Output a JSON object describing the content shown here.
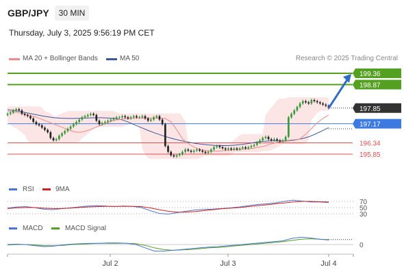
{
  "header": {
    "symbol": "GBP/JPY",
    "timeframe": "30 MIN",
    "datetime": "Thursday, July 3, 2025 9:56:19 PM CET"
  },
  "legend": {
    "ma20": "MA 20 + Bollinger Bands",
    "ma50": "MA 50",
    "credit": "Research © 2025 Trading Central"
  },
  "colors": {
    "ma20": "#f08a8a",
    "ma50": "#3b5998",
    "target": "#54a020",
    "pivot": "#3d7ae0",
    "support": "#e05050",
    "last": "#333333",
    "bands": "#fbdcdc",
    "arrow": "#2f6cc4",
    "rsi": "#4a74d4",
    "rsi_ma": "#d42020",
    "macd": "#4a74d4",
    "macd_signal": "#54a020"
  },
  "chart_data": [
    {
      "type": "candlestick",
      "title": "GBP/JPY 30 MIN",
      "ylim": [
        195.6,
        199.8
      ],
      "x_ticks": [
        "Jul 2",
        "Jul 3",
        "Jul 4"
      ],
      "levels": [
        {
          "label": "199.36",
          "value": 199.36,
          "kind": "target"
        },
        {
          "label": "198.87",
          "value": 198.87,
          "kind": "target"
        },
        {
          "label": "197.85",
          "value": 197.85,
          "kind": "last"
        },
        {
          "label": "197.17",
          "value": 197.17,
          "kind": "pivot"
        },
        {
          "label": "196.34",
          "value": 196.34,
          "kind": "support"
        },
        {
          "label": "195.85",
          "value": 195.85,
          "kind": "support"
        }
      ],
      "closes": [
        197.6,
        197.65,
        197.75,
        197.8,
        197.75,
        197.6,
        197.55,
        197.5,
        197.4,
        197.25,
        197.15,
        197.1,
        197.0,
        196.9,
        196.8,
        196.55,
        196.45,
        196.5,
        196.65,
        196.75,
        196.85,
        196.95,
        197.05,
        197.15,
        197.25,
        197.35,
        197.45,
        197.5,
        197.55,
        197.6,
        197.55,
        197.3,
        197.15,
        197.2,
        197.25,
        197.3,
        197.35,
        197.4,
        197.45,
        197.45,
        197.5,
        197.45,
        197.4,
        197.45,
        197.5,
        197.45,
        197.45,
        197.5,
        197.4,
        197.3,
        197.35,
        197.45,
        197.5,
        197.35,
        197.15,
        196.2,
        195.95,
        195.8,
        195.75,
        195.8,
        195.85,
        195.95,
        196.05,
        196.0,
        195.95,
        196.0,
        196.05,
        196.0,
        195.95,
        195.9,
        195.95,
        196.05,
        196.15,
        196.2,
        196.15,
        196.1,
        196.05,
        196.1,
        196.05,
        196.1,
        196.05,
        196.1,
        196.15,
        196.1,
        196.15,
        196.2,
        196.25,
        196.35,
        196.45,
        196.55,
        196.6,
        196.5,
        196.45,
        196.5,
        196.45,
        196.4,
        196.45,
        196.6,
        197.45,
        197.6,
        197.75,
        197.9,
        198.05,
        198.15,
        198.1,
        198.05,
        198.2,
        198.15,
        198.1,
        198.05,
        198.0,
        197.95,
        197.85
      ],
      "ma20": [
        197.7,
        197.68,
        197.65,
        197.6,
        197.52,
        197.45,
        197.35,
        197.25,
        197.15,
        197.05,
        196.95,
        196.85,
        196.8,
        196.82,
        196.9,
        197.0,
        197.1,
        197.2,
        197.3,
        197.35,
        197.38,
        197.4,
        197.42,
        197.42,
        197.42,
        197.42,
        197.42,
        197.4,
        197.25,
        196.9,
        196.5,
        196.3,
        196.15,
        196.05,
        196.0,
        195.98,
        195.98,
        196.0,
        196.02,
        196.05,
        196.05,
        196.08,
        196.1,
        196.15,
        196.2,
        196.28,
        196.35,
        196.4,
        196.42,
        196.44,
        196.5,
        196.7,
        196.95,
        197.2,
        197.4,
        197.55
      ],
      "ma50": [
        197.78,
        197.74,
        197.7,
        197.64,
        197.58,
        197.52,
        197.47,
        197.43,
        197.41,
        197.4,
        197.4,
        197.41,
        197.42,
        197.43,
        197.43,
        197.42,
        197.4,
        197.35,
        197.25,
        197.12,
        197.0,
        196.88,
        196.77,
        196.67,
        196.58,
        196.5,
        196.43,
        196.37,
        196.32,
        196.28,
        196.25,
        196.23,
        196.22,
        196.22,
        196.24,
        196.27,
        196.31,
        196.36,
        196.4,
        196.42,
        196.43,
        196.42,
        196.44,
        196.47,
        196.52,
        196.6,
        196.72,
        196.86,
        197.0
      ]
    },
    {
      "type": "line",
      "title": "RSI",
      "series": [
        {
          "name": "RSI",
          "values": [
            48,
            52,
            53,
            50,
            45,
            43,
            46,
            49,
            52,
            55,
            56,
            55,
            53,
            55,
            54,
            50,
            40,
            31,
            29,
            33,
            38,
            42,
            44,
            45,
            47,
            49,
            52,
            56,
            60,
            62,
            65,
            70,
            74,
            71,
            68,
            68,
            66
          ]
        },
        {
          "name": "9MA",
          "values": [
            47,
            49,
            50,
            50,
            48,
            47,
            47,
            48,
            50,
            52,
            53,
            54,
            54,
            54,
            54,
            53,
            49,
            43,
            38,
            35,
            35,
            37,
            40,
            43,
            46,
            48,
            50,
            53,
            56,
            59,
            62,
            65,
            68,
            70,
            70,
            69,
            68
          ]
        }
      ],
      "ticks": [
        "70",
        "50",
        "30"
      ]
    },
    {
      "type": "line",
      "title": "MACD",
      "series": [
        {
          "name": "MACD",
          "values": [
            0.0,
            0.01,
            0.0,
            -0.03,
            -0.05,
            -0.04,
            -0.01,
            0.01,
            0.02,
            0.03,
            0.03,
            0.04,
            0.04,
            0.03,
            0.0,
            -0.08,
            -0.16,
            -0.16,
            -0.14,
            -0.12,
            -0.1,
            -0.08,
            -0.06,
            -0.05,
            -0.03,
            -0.01,
            0.01,
            0.03,
            0.05,
            0.07,
            0.09,
            0.15,
            0.18,
            0.16,
            0.13,
            0.11
          ]
        },
        {
          "name": "MACD Signal",
          "values": [
            -0.01,
            0.0,
            0.0,
            -0.01,
            -0.03,
            -0.03,
            -0.02,
            0.0,
            0.01,
            0.02,
            0.03,
            0.03,
            0.03,
            0.03,
            0.02,
            -0.02,
            -0.08,
            -0.12,
            -0.14,
            -0.13,
            -0.12,
            -0.1,
            -0.08,
            -0.07,
            -0.05,
            -0.03,
            -0.01,
            0.01,
            0.03,
            0.05,
            0.07,
            0.1,
            0.13,
            0.14,
            0.13,
            0.12
          ]
        }
      ],
      "ticks": [
        "0"
      ]
    }
  ],
  "indicators": {
    "rsi_label": "RSI",
    "rsi_ma_label": "9MA",
    "macd_label": "MACD",
    "macd_signal_label": "MACD Signal"
  }
}
